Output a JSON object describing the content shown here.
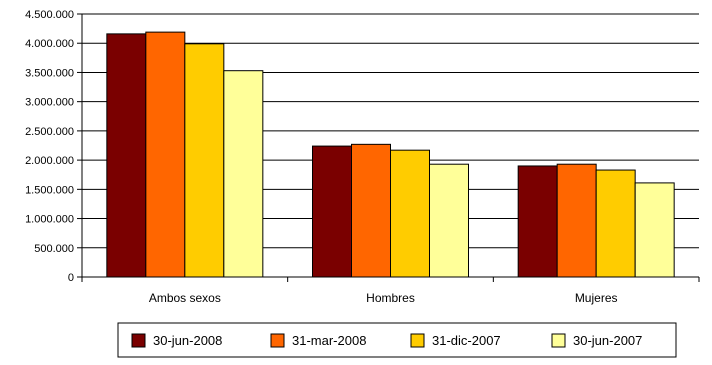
{
  "chart_data": {
    "type": "bar",
    "categories": [
      "Ambos sexos",
      "Hombres",
      "Mujeres"
    ],
    "series": [
      {
        "name": "30-jun-2008",
        "values": [
          4160000,
          2240000,
          1900000
        ],
        "color": "#7a0000"
      },
      {
        "name": "31-mar-2008",
        "values": [
          4190000,
          2270000,
          1930000
        ],
        "color": "#ff6600"
      },
      {
        "name": "31-dic-2007",
        "values": [
          3990000,
          2170000,
          1830000
        ],
        "color": "#ffcc00"
      },
      {
        "name": "30-jun-2007",
        "values": [
          3530000,
          1930000,
          1610000
        ],
        "color": "#ffff99"
      }
    ],
    "ylim": [
      0,
      4500000
    ],
    "yticks": [
      0,
      500000,
      1000000,
      1500000,
      2000000,
      2500000,
      3000000,
      3500000,
      4000000,
      4500000
    ],
    "ytick_labels": [
      "0",
      "500.000",
      "1.000.000",
      "1.500.000",
      "2.000.000",
      "2.500.000",
      "3.000.000",
      "3.500.000",
      "4.000.000",
      "4.500.000"
    ],
    "grid": true,
    "legend_position": "bottom",
    "title": "",
    "xlabel": "",
    "ylabel": ""
  }
}
